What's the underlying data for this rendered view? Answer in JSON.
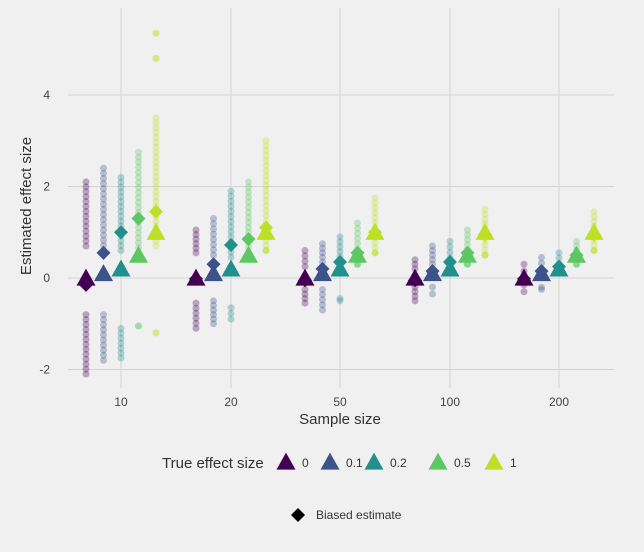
{
  "chart_data": {
    "type": "scatter",
    "xlabel": "Sample size",
    "ylabel": "Estimated effect size",
    "categories": [
      "10",
      "20",
      "50",
      "100",
      "200"
    ],
    "yticks": [
      -2,
      0,
      2,
      4
    ],
    "ylim": [
      -2.25,
      5.6
    ],
    "grid": true,
    "legend": {
      "title": "True effect size",
      "placement": "bottom",
      "entries": [
        "0",
        "0.1",
        "0.2",
        "0.5",
        "1"
      ],
      "biased_label": "Biased estimate"
    },
    "colors": [
      "#440154",
      "#3b528b",
      "#21908c",
      "#5dc863",
      "#bddf26"
    ],
    "series": [
      {
        "name": "0",
        "true_effect": 0,
        "biased_estimate": [
          -0.15,
          -0.02,
          -0.05,
          -0.05,
          -0.02
        ],
        "ranges": [
          [
            [
              -2.1,
              -0.8
            ],
            [
              0.7,
              2.1
            ]
          ],
          [
            [
              -1.1,
              -0.55
            ],
            [
              0.55,
              1.05
            ]
          ],
          [
            [
              -0.55,
              -0.25
            ],
            [
              0.25,
              0.6
            ]
          ],
          [
            [
              -0.5,
              -0.2
            ],
            [
              0.2,
              0.4
            ]
          ],
          [
            [
              -0.3,
              -0.15
            ],
            [
              0.15,
              0.3
            ]
          ]
        ]
      },
      {
        "name": "0.1",
        "true_effect": 0.1,
        "biased_estimate": [
          0.55,
          0.3,
          0.2,
          0.15,
          0.15
        ],
        "ranges": [
          [
            [
              -1.8,
              -0.8
            ],
            [
              0.6,
              2.4
            ]
          ],
          [
            [
              -1.0,
              -0.5
            ],
            [
              0.5,
              1.3
            ]
          ],
          [
            [
              -0.7,
              -0.25
            ],
            [
              0.25,
              0.75
            ]
          ],
          [
            [
              -0.35,
              -0.2
            ],
            [
              0.2,
              0.7
            ]
          ],
          [
            [
              -0.25,
              -0.2
            ],
            [
              0.2,
              0.45
            ]
          ]
        ]
      },
      {
        "name": "0.2",
        "true_effect": 0.2,
        "biased_estimate": [
          1.0,
          0.72,
          0.35,
          0.35,
          0.25
        ],
        "ranges": [
          [
            [
              -1.75,
              -1.1
            ],
            [
              0.6,
              2.2
            ]
          ],
          [
            [
              -0.9,
              -0.65
            ],
            [
              0.45,
              1.9
            ]
          ],
          [
            [
              -0.5,
              -0.45
            ],
            [
              0.25,
              0.9
            ]
          ],
          [
            [
              0.2,
              0.2
            ],
            [
              0.2,
              0.8
            ]
          ],
          [
            [
              0.2,
              0.2
            ],
            [
              0.2,
              0.55
            ]
          ]
        ]
      },
      {
        "name": "0.5",
        "true_effect": 0.5,
        "biased_estimate": [
          1.3,
          0.85,
          0.55,
          0.55,
          0.5
        ],
        "ranges": [
          [
            [
              -1.05,
              -1.05
            ],
            [
              0.55,
              2.75
            ]
          ],
          [
            [
              0.55,
              0.55
            ],
            [
              0.55,
              2.1
            ]
          ],
          [
            [
              0.3,
              0.3
            ],
            [
              0.3,
              1.2
            ]
          ],
          [
            [
              0.3,
              0.3
            ],
            [
              0.3,
              1.05
            ]
          ],
          [
            [
              0.3,
              0.3
            ],
            [
              0.3,
              0.8
            ]
          ]
        ]
      },
      {
        "name": "1",
        "true_effect": 1,
        "biased_estimate": [
          1.45,
          1.1,
          1.0,
          0.95,
          0.95
        ],
        "ranges": [
          [
            [
              -1.2,
              -1.2
            ],
            [
              0.7,
              3.5
            ],
            [
              4.8,
              4.8
            ],
            [
              5.35,
              5.35
            ]
          ],
          [
            [
              0.6,
              0.6
            ],
            [
              0.6,
              3.0
            ]
          ],
          [
            [
              0.55,
              0.55
            ],
            [
              0.55,
              1.75
            ]
          ],
          [
            [
              0.5,
              0.5
            ],
            [
              0.5,
              1.5
            ]
          ],
          [
            [
              0.6,
              0.6
            ],
            [
              0.6,
              1.45
            ]
          ]
        ]
      }
    ]
  }
}
